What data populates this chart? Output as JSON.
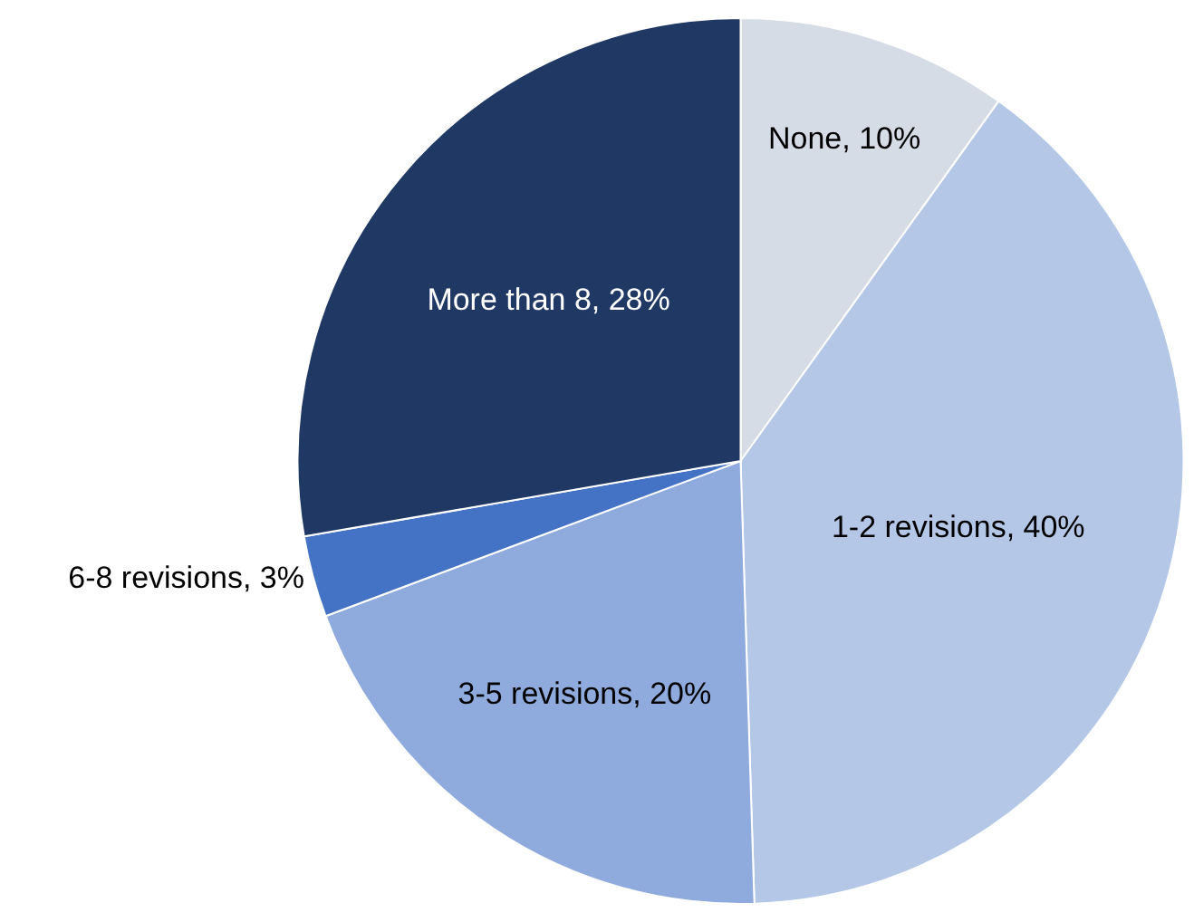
{
  "chart_data": {
    "type": "pie",
    "categories": [
      "None",
      "1-2 revisions",
      "3-5 revisions",
      "6-8 revisions",
      "More than 8"
    ],
    "values": [
      10,
      40,
      20,
      3,
      28
    ],
    "value_labels": [
      "10%",
      "40%",
      "20%",
      "3%",
      "28%"
    ],
    "colors": [
      "#d6dce5",
      "#b4c7e7",
      "#8faadc",
      "#4472c4",
      "#203864"
    ],
    "legend": false
  }
}
